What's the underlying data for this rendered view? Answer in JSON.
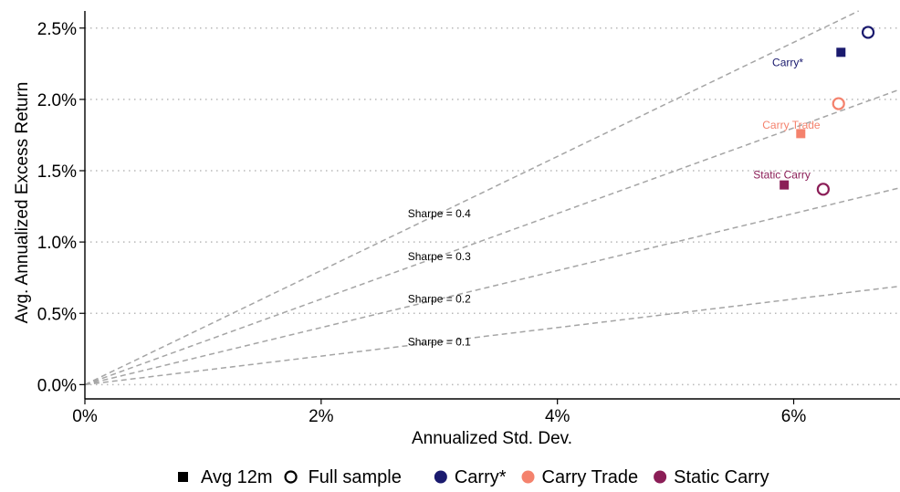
{
  "chart_data": {
    "type": "scatter",
    "xlabel": "Annualized Std. Dev.",
    "ylabel": "Avg. Annualized Excess Return",
    "xlim": [
      0,
      6.9
    ],
    "ylim": [
      -0.1,
      2.62
    ],
    "x_ticks": [
      {
        "value": 0,
        "label": "0%"
      },
      {
        "value": 2,
        "label": "2%"
      },
      {
        "value": 4,
        "label": "4%"
      },
      {
        "value": 6,
        "label": "6%"
      }
    ],
    "y_ticks": [
      {
        "value": 0.0,
        "label": "0.0%"
      },
      {
        "value": 0.5,
        "label": "0.5%"
      },
      {
        "value": 1.0,
        "label": "1.0%"
      },
      {
        "value": 1.5,
        "label": "1.5%"
      },
      {
        "value": 2.0,
        "label": "2.0%"
      },
      {
        "value": 2.5,
        "label": "2.5%"
      }
    ],
    "grid": "horizontal-dotted",
    "sharpe_lines": [
      {
        "sharpe": 0.1,
        "label": "Sharpe = 0.1",
        "label_x": 3.0
      },
      {
        "sharpe": 0.2,
        "label": "Sharpe = 0.2",
        "label_x": 3.0
      },
      {
        "sharpe": 0.3,
        "label": "Sharpe = 0.3",
        "label_x": 3.0
      },
      {
        "sharpe": 0.4,
        "label": "Sharpe = 0.4",
        "label_x": 3.0
      }
    ],
    "series": [
      {
        "name": "Carry*",
        "color": "#1a1a6e",
        "label": "Carry*",
        "label_anchor_point": {
          "x": 5.95,
          "y": 2.26
        },
        "points": [
          {
            "type": "Avg 12m",
            "x": 6.4,
            "y": 2.33
          },
          {
            "type": "Full sample",
            "x": 6.63,
            "y": 2.47
          }
        ]
      },
      {
        "name": "Carry Trade",
        "color": "#f4826d",
        "label": "Carry Trade",
        "label_anchor_point": {
          "x": 5.98,
          "y": 1.82
        },
        "points": [
          {
            "type": "Avg 12m",
            "x": 6.06,
            "y": 1.76
          },
          {
            "type": "Full sample",
            "x": 6.38,
            "y": 1.97
          }
        ]
      },
      {
        "name": "Static Carry",
        "color": "#8b1e57",
        "label": "Static Carry",
        "label_anchor_point": {
          "x": 5.9,
          "y": 1.47
        },
        "points": [
          {
            "type": "Avg 12m",
            "x": 5.92,
            "y": 1.4
          },
          {
            "type": "Full sample",
            "x": 6.25,
            "y": 1.37
          }
        ]
      }
    ],
    "legend": {
      "position": "bottom",
      "shape_items": [
        {
          "shape": "square",
          "label": "Avg 12m"
        },
        {
          "shape": "circle",
          "label": "Full sample"
        }
      ],
      "color_items": [
        {
          "label": "Carry*",
          "color": "#1a1a6e"
        },
        {
          "label": "Carry Trade",
          "color": "#f4826d"
        },
        {
          "label": "Static Carry",
          "color": "#8b1e57"
        }
      ]
    }
  }
}
